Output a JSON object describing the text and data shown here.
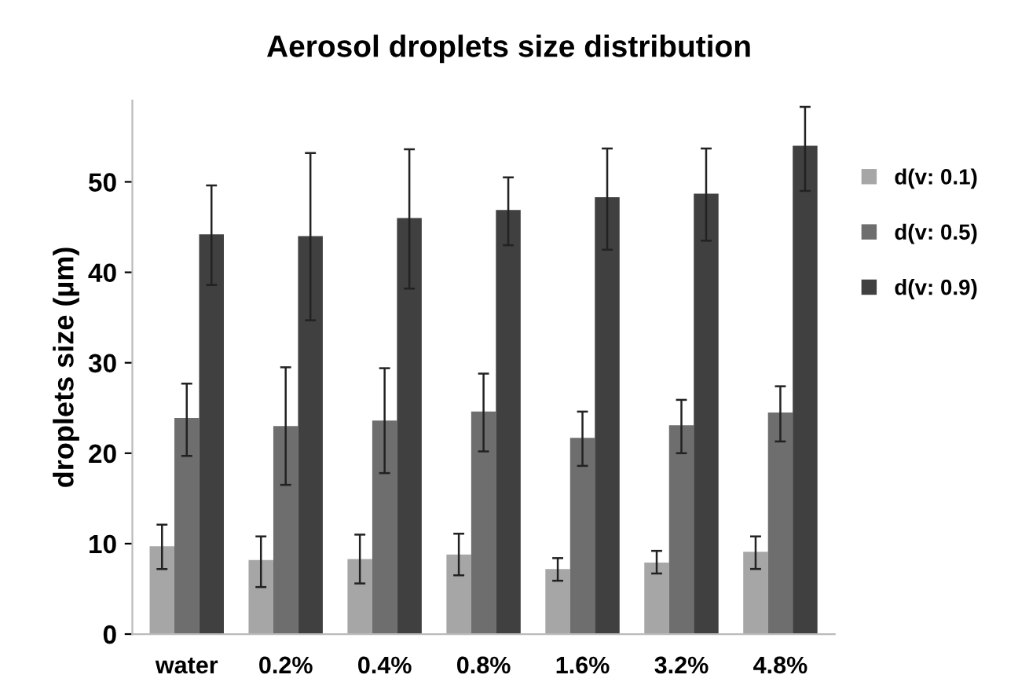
{
  "chart_data": {
    "type": "bar",
    "title": "Aerosol droplets size distribution",
    "ylabel": "droplets size (µm)",
    "categories": [
      "water",
      "0.2%",
      "0.4%",
      "0.8%",
      "1.6%",
      "3.2%",
      "4.8%"
    ],
    "series": [
      {
        "name": "d(v: 0.1)",
        "color": "#a6a6a6",
        "values": [
          9.7,
          8.2,
          8.3,
          8.8,
          7.2,
          7.9,
          9.1
        ],
        "errors": [
          [
            7.2,
            12.1
          ],
          [
            5.2,
            10.8
          ],
          [
            5.6,
            11.0
          ],
          [
            6.5,
            11.1
          ],
          [
            5.9,
            8.4
          ],
          [
            6.7,
            9.2
          ],
          [
            7.2,
            10.8
          ]
        ]
      },
      {
        "name": "d(v: 0.5)",
        "color": "#6e6e6e",
        "values": [
          23.9,
          23.0,
          23.6,
          24.6,
          21.7,
          23.1,
          24.5
        ],
        "errors": [
          [
            19.7,
            27.7
          ],
          [
            16.5,
            29.5
          ],
          [
            17.8,
            29.4
          ],
          [
            20.2,
            28.8
          ],
          [
            18.6,
            24.6
          ],
          [
            20.0,
            25.9
          ],
          [
            21.3,
            27.4
          ]
        ]
      },
      {
        "name": "d(v: 0.9)",
        "color": "#404040",
        "values": [
          44.2,
          44.0,
          46.0,
          46.9,
          48.3,
          48.7,
          54.0
        ],
        "errors": [
          [
            38.6,
            49.6
          ],
          [
            34.7,
            53.2
          ],
          [
            38.2,
            53.6
          ],
          [
            43.0,
            50.5
          ],
          [
            42.5,
            53.7
          ],
          [
            43.5,
            53.7
          ],
          [
            49.0,
            58.3
          ]
        ]
      }
    ],
    "ylim": [
      0,
      59
    ],
    "yticks": [
      0,
      10,
      20,
      30,
      40,
      50
    ],
    "grid": false,
    "legend": "right"
  }
}
